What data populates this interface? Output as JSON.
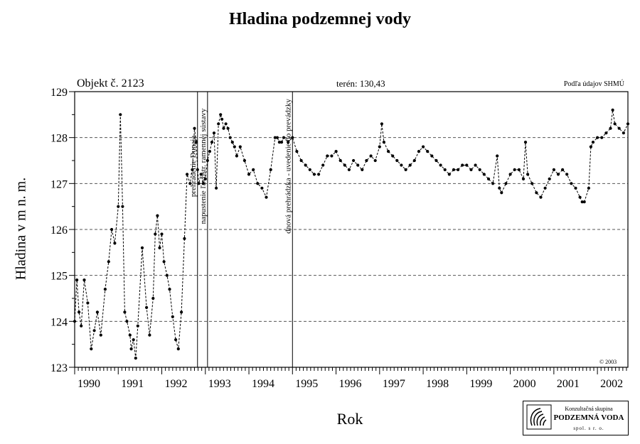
{
  "chart_data": {
    "type": "line",
    "title": "Hladina podzemnej vody",
    "subtitle_left": "Objekt č. 2123",
    "subtitle_center": "terén: 130,43",
    "subtitle_right": "Podľa údajov SHMÚ",
    "copyright": "© 2003",
    "xlabel": "Rok",
    "ylabel": "Hladina v m n. m.",
    "xlim": [
      1990.0,
      2002.7
    ],
    "ylim": [
      123,
      129
    ],
    "x_ticks": [
      1990,
      1991,
      1992,
      1993,
      1994,
      1995,
      1996,
      1997,
      1998,
      1999,
      2000,
      2001,
      2002
    ],
    "y_ticks": [
      123,
      124,
      125,
      126,
      127,
      128,
      129
    ],
    "grid": "horizontal dashed",
    "series": [
      {
        "x": [
          1990.0,
          1990.05,
          1990.1,
          1990.15,
          1990.22,
          1990.3,
          1990.38,
          1990.45,
          1990.52,
          1990.6,
          1990.7,
          1990.78,
          1990.85,
          1990.92,
          1991.0,
          1991.05,
          1991.1,
          1991.15,
          1991.2,
          1991.27,
          1991.3,
          1991.35,
          1991.4,
          1991.45,
          1991.55,
          1991.65,
          1991.72,
          1991.8,
          1991.85,
          1991.9,
          1991.95,
          1992.0,
          1992.05,
          1992.12,
          1992.18,
          1992.25,
          1992.32,
          1992.38,
          1992.45,
          1992.52,
          1992.58,
          1992.65,
          1992.7,
          1992.75,
          1992.79,
          1992.82,
          1992.85,
          1992.9,
          1992.95,
          1993.0,
          1993.05,
          1993.1,
          1993.15,
          1993.2,
          1993.25,
          1993.3,
          1993.35,
          1993.38,
          1993.42,
          1993.47,
          1993.52,
          1993.57,
          1993.62,
          1993.67,
          1993.72,
          1993.8,
          1993.9,
          1994.0,
          1994.1,
          1994.2,
          1994.3,
          1994.4,
          1994.5,
          1994.6,
          1994.65,
          1994.7,
          1994.75,
          1994.8,
          1994.9,
          1995.0,
          1995.1,
          1995.2,
          1995.3,
          1995.4,
          1995.5,
          1995.6,
          1995.7,
          1995.8,
          1995.9,
          1996.0,
          1996.1,
          1996.2,
          1996.3,
          1996.4,
          1996.5,
          1996.6,
          1996.7,
          1996.8,
          1996.9,
          1997.0,
          1997.05,
          1997.1,
          1997.2,
          1997.3,
          1997.4,
          1997.5,
          1997.6,
          1997.7,
          1997.8,
          1997.9,
          1998.0,
          1998.1,
          1998.2,
          1998.3,
          1998.4,
          1998.5,
          1998.6,
          1998.7,
          1998.8,
          1998.9,
          1999.0,
          1999.1,
          1999.2,
          1999.3,
          1999.4,
          1999.5,
          1999.6,
          1999.7,
          1999.75,
          1999.8,
          1999.9,
          2000.0,
          2000.1,
          2000.2,
          2000.3,
          2000.35,
          2000.4,
          2000.5,
          2000.6,
          2000.7,
          2000.8,
          2000.9,
          2001.0,
          2001.1,
          2001.2,
          2001.3,
          2001.4,
          2001.5,
          2001.6,
          2001.65,
          2001.7,
          2001.8,
          2001.85,
          2001.9,
          2002.0,
          2002.1,
          2002.2,
          2002.3,
          2002.35,
          2002.4,
          2002.5,
          2002.6,
          2002.7
        ],
        "y": [
          124.0,
          124.9,
          124.2,
          123.9,
          124.9,
          124.4,
          123.4,
          123.8,
          124.2,
          123.7,
          124.7,
          125.3,
          126.0,
          125.7,
          126.5,
          128.5,
          126.5,
          124.2,
          124.0,
          123.7,
          123.4,
          123.6,
          123.2,
          123.9,
          125.6,
          124.3,
          123.7,
          124.5,
          125.9,
          126.3,
          125.6,
          125.9,
          125.3,
          125.0,
          124.7,
          124.1,
          123.6,
          123.4,
          124.2,
          125.8,
          127.2,
          127.0,
          127.3,
          128.2,
          127.9,
          127.3,
          127.0,
          127.2,
          127.0,
          127.1,
          127.5,
          127.7,
          127.9,
          128.1,
          126.9,
          128.3,
          128.5,
          128.4,
          128.2,
          128.3,
          128.2,
          128.0,
          127.9,
          127.8,
          127.6,
          127.8,
          127.5,
          127.2,
          127.3,
          127.0,
          126.9,
          126.7,
          127.3,
          128.0,
          128.0,
          127.9,
          127.9,
          128.0,
          127.9,
          128.0,
          127.7,
          127.5,
          127.4,
          127.3,
          127.2,
          127.2,
          127.4,
          127.6,
          127.6,
          127.7,
          127.5,
          127.4,
          127.3,
          127.5,
          127.4,
          127.3,
          127.5,
          127.6,
          127.5,
          127.8,
          128.3,
          127.9,
          127.7,
          127.6,
          127.5,
          127.4,
          127.3,
          127.4,
          127.5,
          127.7,
          127.8,
          127.7,
          127.6,
          127.5,
          127.4,
          127.3,
          127.2,
          127.3,
          127.3,
          127.4,
          127.4,
          127.3,
          127.4,
          127.3,
          127.2,
          127.1,
          127.0,
          127.6,
          126.9,
          126.8,
          127.0,
          127.2,
          127.3,
          127.3,
          127.1,
          127.9,
          127.2,
          127.0,
          126.8,
          126.7,
          126.9,
          127.1,
          127.3,
          127.2,
          127.3,
          127.2,
          127.0,
          126.9,
          126.7,
          126.6,
          126.6,
          126.9,
          127.8,
          127.9,
          128.0,
          128.0,
          128.1,
          128.2,
          128.6,
          128.3,
          128.2,
          128.1,
          128.3
        ]
      }
    ],
    "event_lines": [
      {
        "x": 1992.82,
        "label": "prehradenie Dunaja"
      },
      {
        "x": 1993.05,
        "label": "napustenie ľavostr. ramennej sústavy"
      },
      {
        "x": 1995.0,
        "label": "dnová prehrádzka - uvedenie do prevádzky"
      }
    ]
  },
  "logo": {
    "line1": "Konzultačná skupina",
    "line2": "PODZEMNÁ VODA",
    "line3": "spol. s r. o."
  },
  "colors": {
    "line": "#000000",
    "grid": "#555555",
    "background": "#ffffff"
  }
}
